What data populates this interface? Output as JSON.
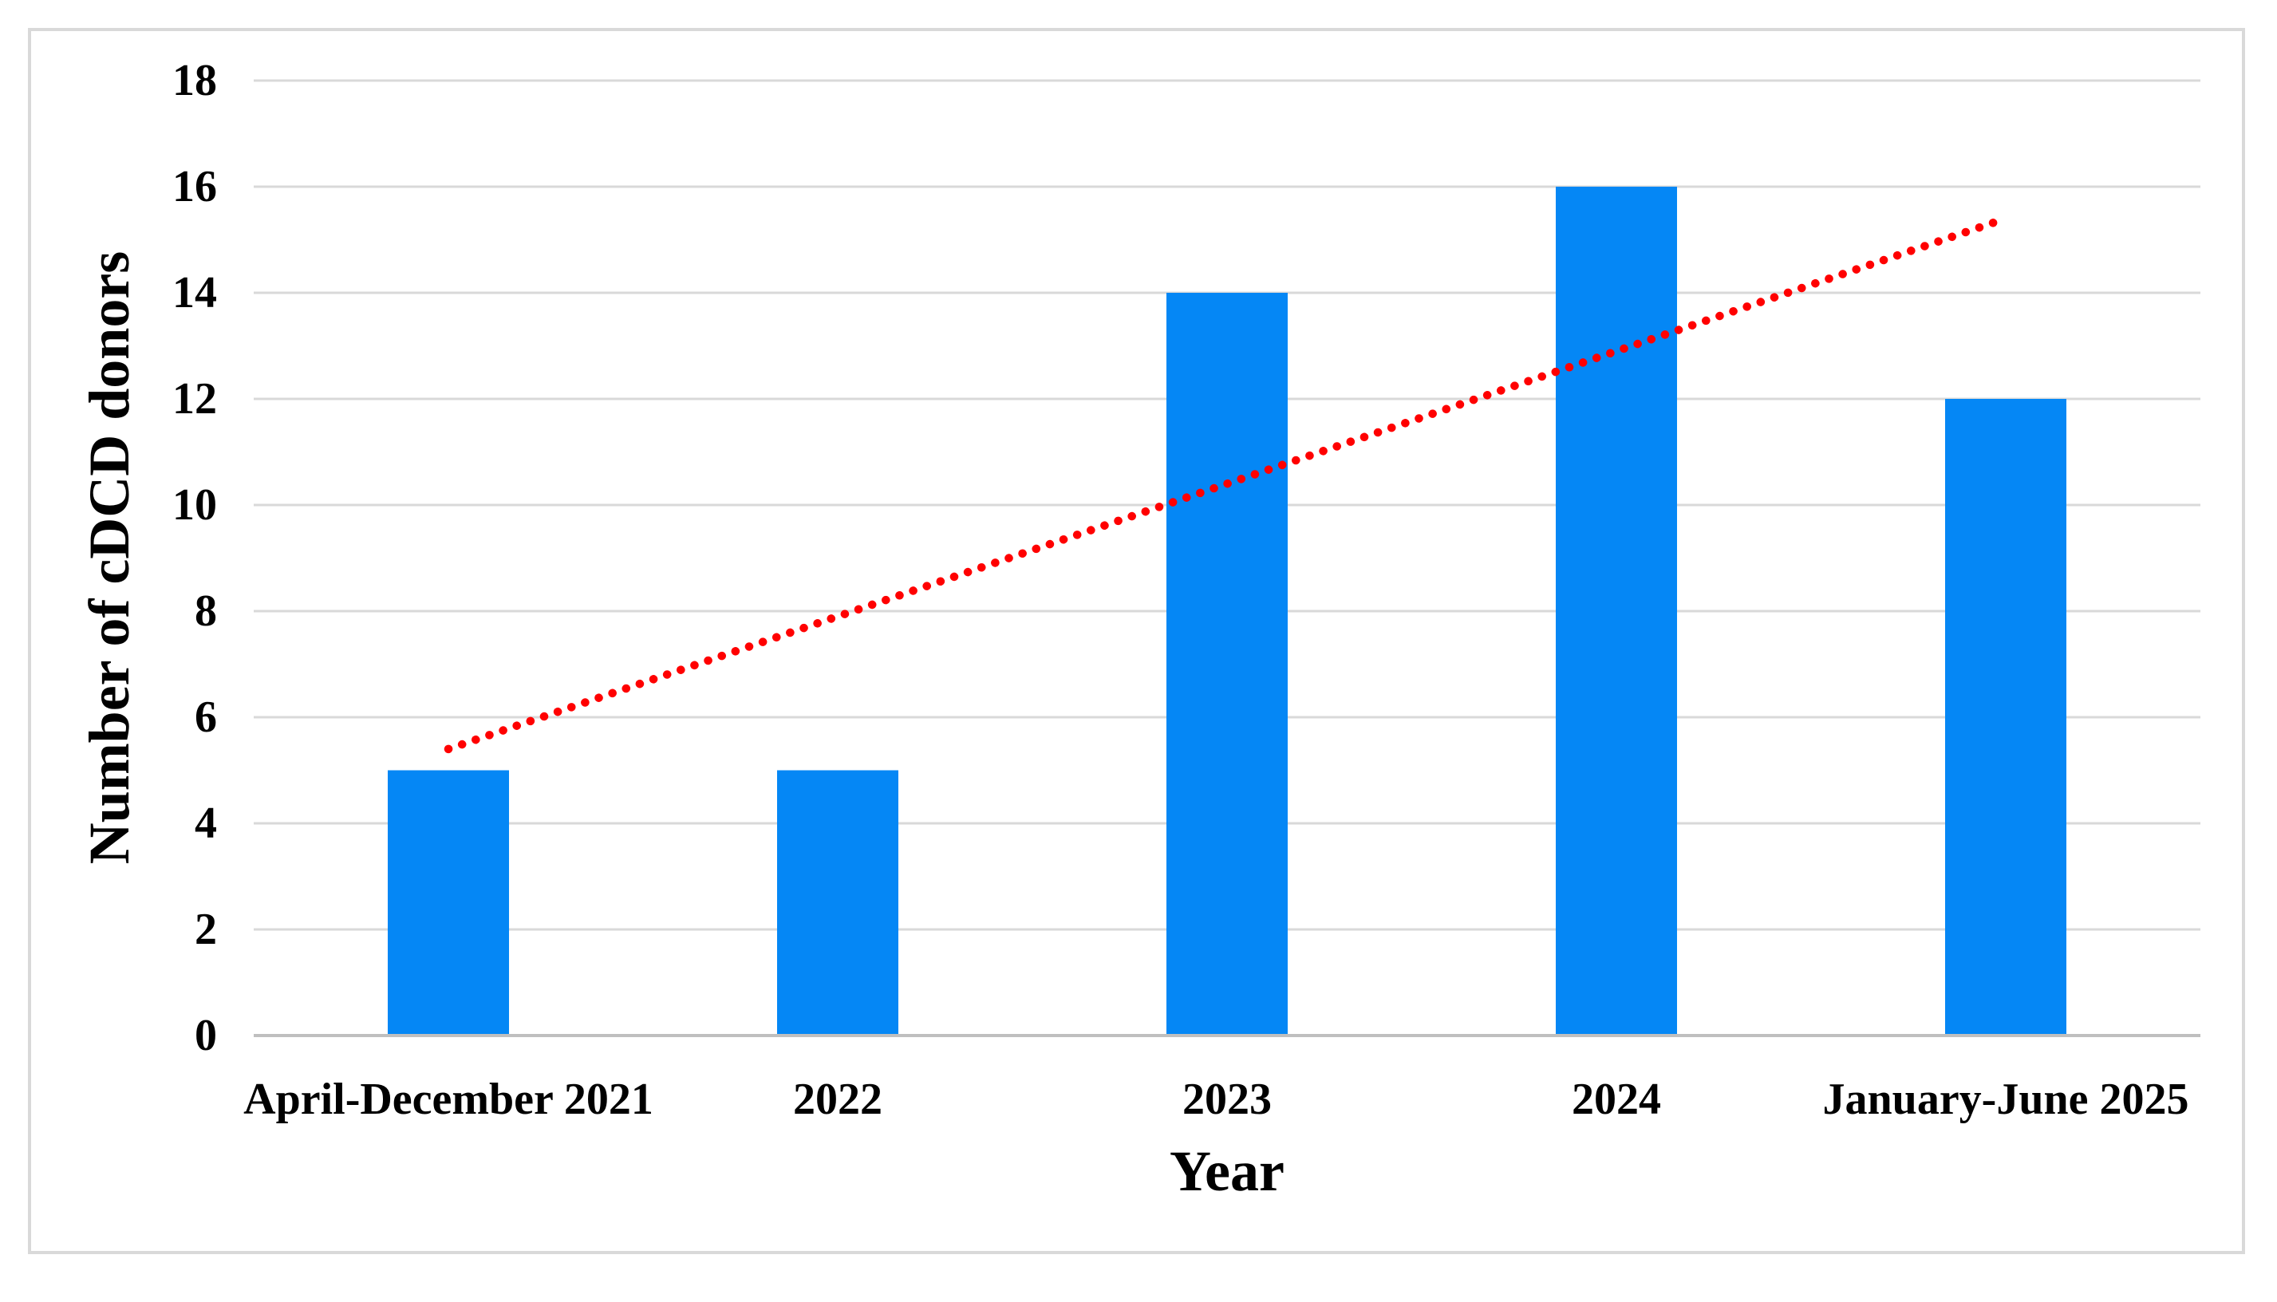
{
  "figure": {
    "border_color": "#d9d9d9",
    "background_color": "#ffffff"
  },
  "chart_data": {
    "type": "bar",
    "title": "",
    "categories": [
      "April-December 2021",
      "2022",
      "2023",
      "2024",
      "January-June 2025"
    ],
    "values": [
      5,
      5,
      14,
      16,
      12
    ],
    "xlabel": "Year",
    "ylabel": "Number of cDCD donors",
    "ylim": [
      0,
      18
    ],
    "yticks": [
      "0",
      "2",
      "4",
      "6",
      "8",
      "10",
      "12",
      "14",
      "16",
      "18"
    ],
    "grid": "horizontal-only",
    "legend": "none",
    "bar_color": "#0587f5",
    "gridline_color": "#d9d9d9",
    "axis_line_color": "#bfbfbf",
    "trendline": {
      "type": "linear",
      "style": "dotted",
      "color": "#ff0000",
      "start_value": 5.4,
      "end_value": 15.4,
      "values_at_categories": [
        5.4,
        7.9,
        10.4,
        12.9,
        15.4
      ]
    }
  }
}
